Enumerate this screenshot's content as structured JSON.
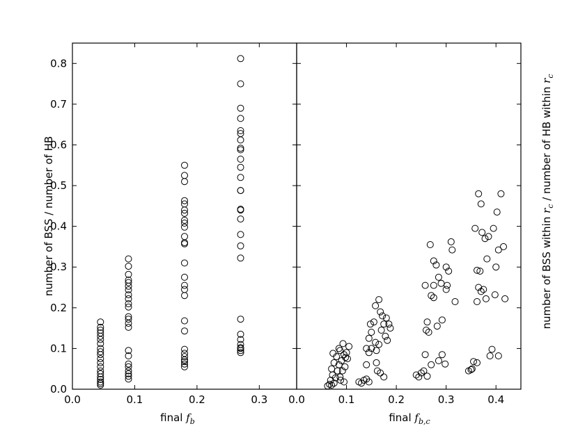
{
  "chart_data": [
    {
      "type": "scatter",
      "xlabel": "final f_b",
      "ylabel": "number of BSS / number of HB",
      "xlim": [
        0.0,
        0.36
      ],
      "ylim": [
        0.0,
        0.85
      ],
      "xticks": [
        "0.0",
        "0.1",
        "0.2",
        "0.3"
      ],
      "xtick_values": [
        0.0,
        0.1,
        0.2,
        0.3
      ],
      "yticks": [
        "0.0",
        "0.1",
        "0.2",
        "0.3",
        "0.4",
        "0.5",
        "0.6",
        "0.7",
        "0.8"
      ],
      "ytick_values": [
        0.0,
        0.1,
        0.2,
        0.3,
        0.4,
        0.5,
        0.6,
        0.7,
        0.8
      ],
      "marker": "open-circle",
      "series": [
        {
          "points": [
            [
              0.045,
              0.165
            ],
            [
              0.045,
              0.152
            ],
            [
              0.045,
              0.145
            ],
            [
              0.045,
              0.138
            ],
            [
              0.045,
              0.13
            ],
            [
              0.045,
              0.122
            ],
            [
              0.045,
              0.112
            ],
            [
              0.045,
              0.1
            ],
            [
              0.045,
              0.092
            ],
            [
              0.045,
              0.085
            ],
            [
              0.045,
              0.075
            ],
            [
              0.045,
              0.065
            ],
            [
              0.045,
              0.055
            ],
            [
              0.045,
              0.045
            ],
            [
              0.045,
              0.038
            ],
            [
              0.045,
              0.03
            ],
            [
              0.045,
              0.024
            ],
            [
              0.045,
              0.018
            ],
            [
              0.045,
              0.014
            ],
            [
              0.045,
              0.01
            ],
            [
              0.09,
              0.32
            ],
            [
              0.09,
              0.302
            ],
            [
              0.09,
              0.282
            ],
            [
              0.09,
              0.268
            ],
            [
              0.09,
              0.262
            ],
            [
              0.09,
              0.253
            ],
            [
              0.09,
              0.244
            ],
            [
              0.09,
              0.232
            ],
            [
              0.09,
              0.222
            ],
            [
              0.09,
              0.21
            ],
            [
              0.09,
              0.202
            ],
            [
              0.09,
              0.178
            ],
            [
              0.09,
              0.172
            ],
            [
              0.09,
              0.162
            ],
            [
              0.09,
              0.152
            ],
            [
              0.09,
              0.095
            ],
            [
              0.09,
              0.082
            ],
            [
              0.09,
              0.062
            ],
            [
              0.09,
              0.055
            ],
            [
              0.09,
              0.045
            ],
            [
              0.09,
              0.038
            ],
            [
              0.09,
              0.032
            ],
            [
              0.09,
              0.025
            ],
            [
              0.18,
              0.55
            ],
            [
              0.18,
              0.525
            ],
            [
              0.18,
              0.51
            ],
            [
              0.18,
              0.463
            ],
            [
              0.18,
              0.455
            ],
            [
              0.18,
              0.44
            ],
            [
              0.18,
              0.432
            ],
            [
              0.18,
              0.415
            ],
            [
              0.18,
              0.408
            ],
            [
              0.18,
              0.398
            ],
            [
              0.18,
              0.375
            ],
            [
              0.18,
              0.36
            ],
            [
              0.18,
              0.357
            ],
            [
              0.18,
              0.31
            ],
            [
              0.18,
              0.275
            ],
            [
              0.18,
              0.255
            ],
            [
              0.18,
              0.245
            ],
            [
              0.18,
              0.23
            ],
            [
              0.18,
              0.168
            ],
            [
              0.18,
              0.143
            ],
            [
              0.18,
              0.098
            ],
            [
              0.18,
              0.088
            ],
            [
              0.18,
              0.08
            ],
            [
              0.18,
              0.072
            ],
            [
              0.18,
              0.068
            ],
            [
              0.18,
              0.062
            ],
            [
              0.18,
              0.055
            ],
            [
              0.27,
              0.812
            ],
            [
              0.27,
              0.75
            ],
            [
              0.27,
              0.69
            ],
            [
              0.27,
              0.665
            ],
            [
              0.27,
              0.635
            ],
            [
              0.27,
              0.628
            ],
            [
              0.27,
              0.612
            ],
            [
              0.27,
              0.592
            ],
            [
              0.27,
              0.588
            ],
            [
              0.27,
              0.565
            ],
            [
              0.27,
              0.545
            ],
            [
              0.27,
              0.52
            ],
            [
              0.27,
              0.488
            ],
            [
              0.27,
              0.488
            ],
            [
              0.27,
              0.442
            ],
            [
              0.27,
              0.44
            ],
            [
              0.27,
              0.418
            ],
            [
              0.27,
              0.38
            ],
            [
              0.27,
              0.352
            ],
            [
              0.27,
              0.322
            ],
            [
              0.27,
              0.172
            ],
            [
              0.27,
              0.135
            ],
            [
              0.27,
              0.122
            ],
            [
              0.27,
              0.11
            ],
            [
              0.27,
              0.102
            ],
            [
              0.27,
              0.1
            ],
            [
              0.27,
              0.095
            ],
            [
              0.27,
              0.09
            ]
          ]
        }
      ]
    },
    {
      "type": "scatter",
      "xlabel": "final f_b,c",
      "ylabel": "number of BSS within r_c / number of HB within r_c",
      "xlim": [
        0.0,
        0.45
      ],
      "ylim": [
        0.0,
        0.85
      ],
      "xticks": [
        "0.0",
        "0.1",
        "0.2",
        "0.3",
        "0.4"
      ],
      "xtick_values": [
        0.0,
        0.1,
        0.2,
        0.3,
        0.4
      ],
      "marker": "open-circle",
      "series": [
        {
          "points": [
            [
              0.062,
              0.008
            ],
            [
              0.066,
              0.012
            ],
            [
              0.07,
              0.01
            ],
            [
              0.075,
              0.015
            ],
            [
              0.068,
              0.022
            ],
            [
              0.072,
              0.035
            ],
            [
              0.078,
              0.028
            ],
            [
              0.082,
              0.045
            ],
            [
              0.07,
              0.05
            ],
            [
              0.085,
              0.06
            ],
            [
              0.075,
              0.065
            ],
            [
              0.09,
              0.07
            ],
            [
              0.08,
              0.08
            ],
            [
              0.073,
              0.088
            ],
            [
              0.087,
              0.095
            ],
            [
              0.093,
              0.112
            ],
            [
              0.085,
              0.1
            ],
            [
              0.095,
              0.085
            ],
            [
              0.098,
              0.078
            ],
            [
              0.092,
              0.045
            ],
            [
              0.087,
              0.03
            ],
            [
              0.095,
              0.018
            ],
            [
              0.088,
              0.022
            ],
            [
              0.097,
              0.055
            ],
            [
              0.1,
              0.09
            ],
            [
              0.105,
              0.105
            ],
            [
              0.102,
              0.075
            ],
            [
              0.125,
              0.018
            ],
            [
              0.13,
              0.015
            ],
            [
              0.135,
              0.022
            ],
            [
              0.14,
              0.025
            ],
            [
              0.145,
              0.018
            ],
            [
              0.14,
              0.06
            ],
            [
              0.145,
              0.09
            ],
            [
              0.14,
              0.1
            ],
            [
              0.15,
              0.1
            ],
            [
              0.145,
              0.125
            ],
            [
              0.15,
              0.14
            ],
            [
              0.148,
              0.16
            ],
            [
              0.155,
              0.165
            ],
            [
              0.158,
              0.115
            ],
            [
              0.16,
              0.095
            ],
            [
              0.16,
              0.065
            ],
            [
              0.162,
              0.045
            ],
            [
              0.168,
              0.04
            ],
            [
              0.175,
              0.03
            ],
            [
              0.158,
              0.205
            ],
            [
              0.165,
              0.22
            ],
            [
              0.168,
              0.19
            ],
            [
              0.172,
              0.18
            ],
            [
              0.175,
              0.16
            ],
            [
              0.17,
              0.145
            ],
            [
              0.178,
              0.13
            ],
            [
              0.182,
              0.12
            ],
            [
              0.18,
              0.175
            ],
            [
              0.185,
              0.16
            ],
            [
              0.188,
              0.15
            ],
            [
              0.165,
              0.11
            ],
            [
              0.24,
              0.035
            ],
            [
              0.245,
              0.03
            ],
            [
              0.25,
              0.04
            ],
            [
              0.255,
              0.045
            ],
            [
              0.262,
              0.032
            ],
            [
              0.258,
              0.085
            ],
            [
              0.26,
              0.145
            ],
            [
              0.262,
              0.165
            ],
            [
              0.265,
              0.14
            ],
            [
              0.27,
              0.06
            ],
            [
              0.258,
              0.255
            ],
            [
              0.27,
              0.23
            ],
            [
              0.275,
              0.225
            ],
            [
              0.268,
              0.355
            ],
            [
              0.275,
              0.315
            ],
            [
              0.28,
              0.305
            ],
            [
              0.275,
              0.255
            ],
            [
              0.285,
              0.275
            ],
            [
              0.29,
              0.26
            ],
            [
              0.282,
              0.155
            ],
            [
              0.292,
              0.17
            ],
            [
              0.285,
              0.07
            ],
            [
              0.292,
              0.085
            ],
            [
              0.298,
              0.062
            ],
            [
              0.3,
              0.3
            ],
            [
              0.305,
              0.29
            ],
            [
              0.302,
              0.255
            ],
            [
              0.3,
              0.245
            ],
            [
              0.31,
              0.362
            ],
            [
              0.312,
              0.342
            ],
            [
              0.318,
              0.215
            ],
            [
              0.345,
              0.045
            ],
            [
              0.35,
              0.048
            ],
            [
              0.352,
              0.05
            ],
            [
              0.355,
              0.068
            ],
            [
              0.362,
              0.065
            ],
            [
              0.358,
              0.395
            ],
            [
              0.362,
              0.292
            ],
            [
              0.365,
              0.48
            ],
            [
              0.37,
              0.455
            ],
            [
              0.372,
              0.385
            ],
            [
              0.365,
              0.25
            ],
            [
              0.368,
              0.29
            ],
            [
              0.37,
              0.24
            ],
            [
              0.362,
              0.215
            ],
            [
              0.375,
              0.245
            ],
            [
              0.38,
              0.222
            ],
            [
              0.378,
              0.37
            ],
            [
              0.385,
              0.375
            ],
            [
              0.382,
              0.32
            ],
            [
              0.388,
              0.082
            ],
            [
              0.392,
              0.098
            ],
            [
              0.395,
              0.395
            ],
            [
              0.398,
              0.232
            ],
            [
              0.4,
              0.3
            ],
            [
              0.402,
              0.435
            ],
            [
              0.405,
              0.342
            ],
            [
              0.405,
              0.082
            ],
            [
              0.41,
              0.48
            ],
            [
              0.415,
              0.35
            ],
            [
              0.418,
              0.222
            ]
          ]
        }
      ]
    }
  ]
}
